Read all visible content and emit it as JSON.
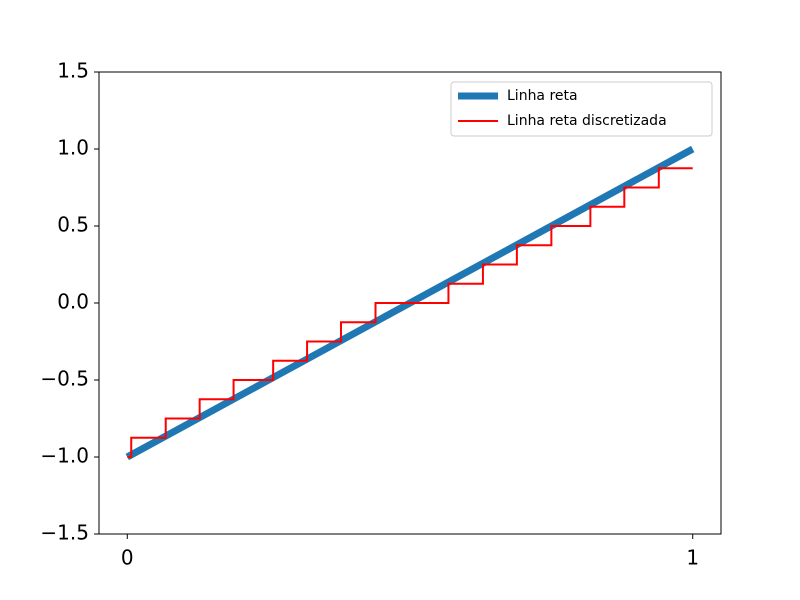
{
  "chart_data": {
    "type": "line",
    "xlim": [
      -0.05,
      1.05
    ],
    "xticks": [
      0,
      1
    ],
    "ylim": [
      -1.5,
      1.5
    ],
    "yticks": [
      {
        "value": -1.5,
        "label": "−1.5"
      },
      {
        "value": -1.0,
        "label": "−1.0"
      },
      {
        "value": -0.5,
        "label": "−0.5"
      },
      {
        "value": 0.0,
        "label": "0.0"
      },
      0.5,
      {
        "value": 1.0,
        "label": "1.0"
      },
      1.5
    ],
    "legend": "upper right",
    "series": [
      {
        "name": "Linha reta",
        "color": "#1f77b4",
        "drawstyle": "default",
        "x": [
          0,
          1
        ],
        "values": [
          -1,
          1
        ]
      },
      {
        "name": "Linha reta discretizada",
        "color": "#ff0000",
        "drawstyle": "steps-post",
        "x": [
          0,
          0.007,
          0.068,
          0.128,
          0.188,
          0.258,
          0.318,
          0.378,
          0.439,
          0.568,
          0.629,
          0.689,
          0.75,
          0.819,
          0.879,
          0.94,
          1.0
        ],
        "values": [
          -1,
          -0.875,
          -0.75,
          -0.625,
          -0.5,
          -0.375,
          -0.25,
          -0.125,
          0,
          0.125,
          0.25,
          0.375,
          0.5,
          0.625,
          0.75,
          0.875,
          0.875
        ]
      }
    ]
  }
}
